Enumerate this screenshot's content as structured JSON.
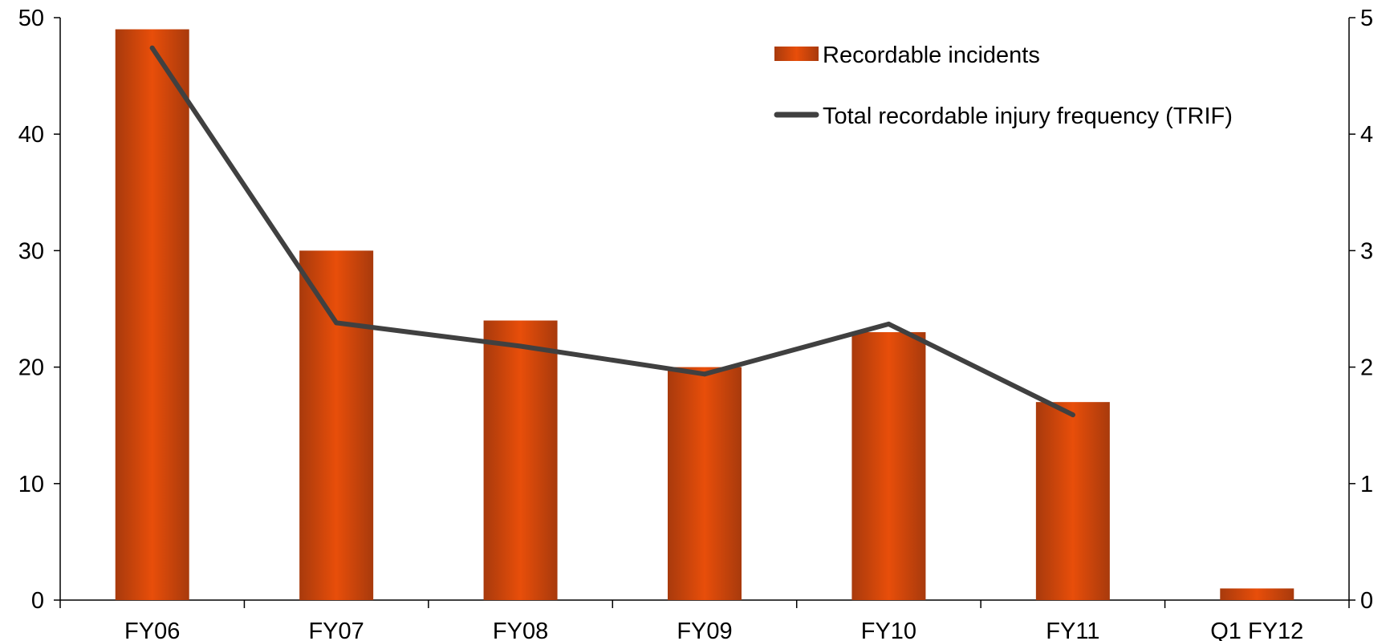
{
  "chart_data": {
    "type": "bar",
    "categories": [
      "FY06",
      "FY07",
      "FY08",
      "FY09",
      "FY10",
      "FY11",
      "Q1 FY12"
    ],
    "series": [
      {
        "name": "Recordable incidents",
        "type": "bar",
        "axis": "left",
        "values": [
          49,
          30,
          24,
          20,
          23,
          17,
          1
        ]
      },
      {
        "name": "Total recordable injury frequency (TRIF)",
        "type": "line",
        "axis": "right",
        "values": [
          4.74,
          2.38,
          2.18,
          1.94,
          2.37,
          1.59,
          null
        ]
      }
    ],
    "left_axis": {
      "min": 0,
      "max": 50,
      "ticks": [
        "0",
        "10",
        "20",
        "30",
        "40",
        "50"
      ]
    },
    "right_axis": {
      "min": 0,
      "max": 5,
      "ticks": [
        "0",
        "1",
        "2",
        "3",
        "4",
        "5"
      ]
    },
    "legend_position": "top-right",
    "grid": false,
    "colors": {
      "bar_center": "#e84e0a",
      "bar_edge": "#a83a0c",
      "line": "#404040",
      "axis": "#000000"
    }
  }
}
